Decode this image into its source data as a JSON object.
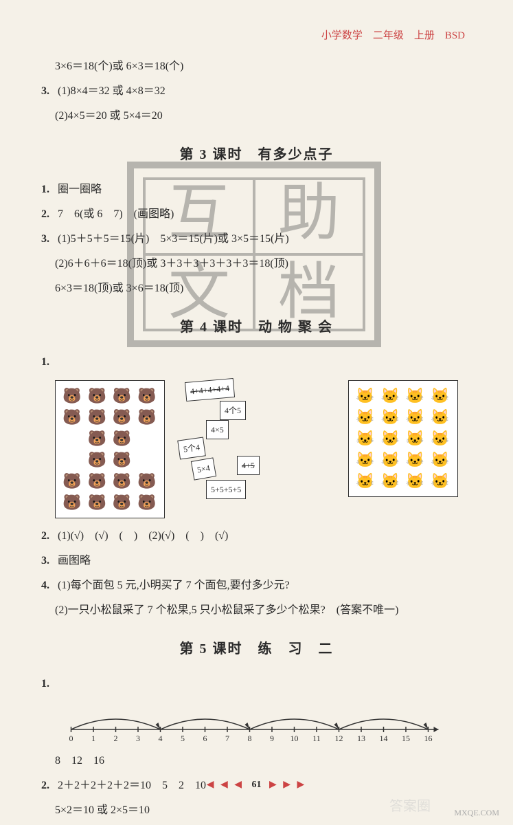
{
  "header": {
    "text": "小学数学　二年级　上册　BSD"
  },
  "top_lines": [
    "3×6＝18(个)或 6×3＝18(个)",
    "(1)8×4＝32 或 4×8＝32",
    "(2)4×5＝20 或 5×4＝20"
  ],
  "q3_num": "3.",
  "section3": {
    "title": "第 3 课时　有多少点子",
    "q1_num": "1.",
    "q1": "圈一圈略",
    "q2_num": "2.",
    "q2": "7　6(或 6　7)　(画图略)",
    "q3_num": "3.",
    "q3_lines": [
      "(1)5＋5＋5＝15(片)　5×3＝15(片)或 3×5＝15(片)",
      "(2)6＋6＋6＝18(顶)或 3＋3＋3＋3＋3＋3＝18(顶)",
      "6×3＝18(顶)或 3×6＝18(顶)"
    ]
  },
  "section4": {
    "title": "第 4 课时　动 物 聚 会",
    "q1_num": "1.",
    "labels": {
      "l1": "4+4+4+4+4",
      "l2": "4个5",
      "l3": "4×5",
      "l4": "5个4",
      "l5": "5×4",
      "l6": "4+5",
      "l7": "5+5+5+5"
    },
    "q2_num": "2.",
    "q2": "(1)(√)　(√)　(　)　(2)(√)　(　)　(√)",
    "q3_num": "3.",
    "q3": "画图略",
    "q4_num": "4.",
    "q4_lines": [
      "(1)每个面包 5 元,小明买了 7 个面包,要付多少元?",
      "(2)一只小松鼠采了 7 个松果,5 只小松鼠采了多少个松果?　(答案不唯一)"
    ]
  },
  "section5": {
    "title": "第 5 课时　练　习　二",
    "q1_num": "1.",
    "numberline": {
      "ticks": [
        "0",
        "1",
        "2",
        "3",
        "4",
        "5",
        "6",
        "7",
        "8",
        "9",
        "10",
        "11",
        "12",
        "13",
        "14",
        "15",
        "16"
      ]
    },
    "q1_answer": "8　12　16",
    "q2_num": "2.",
    "q2_lines": [
      "2＋2＋2＋2＋2＝10　5　2　10",
      "5×2＝10 或 2×5＝10"
    ]
  },
  "footer": {
    "page": "61"
  },
  "watermarks": {
    "bottom_right": "MXQE.COM",
    "bottom_left": "答案圈"
  },
  "watermark_chars": {
    "tl": "互",
    "tr": "助",
    "bl": "文",
    "br": "档"
  }
}
